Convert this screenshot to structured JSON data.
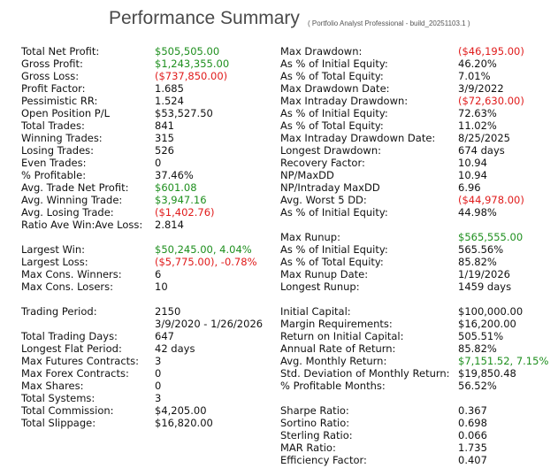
{
  "header": {
    "title": "Performance Summary",
    "subtitle": "( Portfolio Analyst Professional - build_20251103.1 )"
  },
  "colors": {
    "positive": "#1e8f1e",
    "negative": "#e01b1b",
    "text": "#111111"
  },
  "left_column": [
    {
      "label": "Total Net Profit:",
      "value": "$505,505.00",
      "tone": "green"
    },
    {
      "label": "Gross Profit:",
      "value": "$1,243,355.00",
      "tone": "green"
    },
    {
      "label": "Gross Loss:",
      "value": "($737,850.00)",
      "tone": "red"
    },
    {
      "label": "Profit Factor:",
      "value": "1.685"
    },
    {
      "label": "Pessimistic RR:",
      "value": "1.524"
    },
    {
      "label": "Open Position P/L",
      "value": "$53,527.50"
    },
    {
      "label": "Total Trades:",
      "value": "841"
    },
    {
      "label": "Winning Trades:",
      "value": "315"
    },
    {
      "label": "Losing Trades:",
      "value": "526"
    },
    {
      "label": "Even Trades:",
      "value": "0"
    },
    {
      "label": "% Profitable:",
      "value": "37.46%"
    },
    {
      "label": "Avg. Trade Net Profit:",
      "value": "$601.08",
      "tone": "green"
    },
    {
      "label": "Avg. Winning Trade:",
      "value": "$3,947.16",
      "tone": "green"
    },
    {
      "label": "Avg. Losing Trade:",
      "value": "($1,402.76)",
      "tone": "red"
    },
    {
      "label": "Ratio Ave Win:Ave Loss:",
      "value": "2.814"
    },
    {
      "label": "",
      "value": ""
    },
    {
      "label": "Largest Win:",
      "value": "$50,245.00, 4.04%",
      "tone": "green"
    },
    {
      "label": "Largest Loss:",
      "value": "($5,775.00), -0.78%",
      "tone": "red"
    },
    {
      "label": "Max Cons. Winners:",
      "value": "6"
    },
    {
      "label": "Max Cons. Losers:",
      "value": "10"
    },
    {
      "label": "",
      "value": ""
    },
    {
      "label": "Trading Period:",
      "value": "2150"
    },
    {
      "label": "",
      "value": "3/9/2020 - 1/26/2026"
    },
    {
      "label": "Total Trading Days:",
      "value": "647"
    },
    {
      "label": "Longest Flat Period:",
      "value": "42 days"
    },
    {
      "label": "Max Futures Contracts:",
      "value": "3"
    },
    {
      "label": "Max Forex Contracts:",
      "value": "0"
    },
    {
      "label": "Max Shares:",
      "value": "0"
    },
    {
      "label": "Total Systems:",
      "value": "3"
    },
    {
      "label": "Total Commission:",
      "value": "$4,205.00"
    },
    {
      "label": "Total Slippage:",
      "value": "$16,820.00"
    }
  ],
  "right_column": [
    {
      "label": "Max Drawdown:",
      "value": "($46,195.00)",
      "tone": "red"
    },
    {
      "label": "As % of Initial Equity:",
      "value": "46.20%"
    },
    {
      "label": "As % of Total Equity:",
      "value": "7.01%"
    },
    {
      "label": "Max Drawdown Date:",
      "value": "3/9/2022"
    },
    {
      "label": "Max Intraday Drawdown:",
      "value": "($72,630.00)",
      "tone": "red"
    },
    {
      "label": "As % of Initial Equity:",
      "value": "72.63%"
    },
    {
      "label": "As % of Total Equity:",
      "value": "11.02%"
    },
    {
      "label": "Max Intraday Drawdown Date:",
      "value": "8/25/2025"
    },
    {
      "label": "Longest Drawdown:",
      "value": "674 days"
    },
    {
      "label": "Recovery Factor:",
      "value": "10.94"
    },
    {
      "label": "NP/MaxDD",
      "value": "10.94"
    },
    {
      "label": "NP/Intraday MaxDD",
      "value": "6.96"
    },
    {
      "label": "Avg. Worst 5 DD:",
      "value": "($44,978.00)",
      "tone": "red"
    },
    {
      "label": "As % of Initial Equity:",
      "value": "44.98%"
    },
    {
      "label": "",
      "value": ""
    },
    {
      "label": "Max Runup:",
      "value": "$565,555.00",
      "tone": "green"
    },
    {
      "label": "As % of Initial Equity:",
      "value": "565.56%"
    },
    {
      "label": "As % of Total Equity:",
      "value": "85.82%"
    },
    {
      "label": "Max Runup Date:",
      "value": "1/19/2026"
    },
    {
      "label": "Longest Runup:",
      "value": "1459 days"
    },
    {
      "label": "",
      "value": ""
    },
    {
      "label": "Initial Capital:",
      "value": "$100,000.00"
    },
    {
      "label": "Margin Requirements:",
      "value": "$16,200.00"
    },
    {
      "label": "Return on Initial Capital:",
      "value": "505.51%"
    },
    {
      "label": "Annual Rate of Return:",
      "value": "85.82%"
    },
    {
      "label": "Avg. Monthly Return:",
      "value": "$7,151.52, 7.15%",
      "tone": "green"
    },
    {
      "label": "Std. Deviation of Monthly Return:",
      "value": "$19,850.48"
    },
    {
      "label": "% Profitable Months:",
      "value": "56.52%"
    },
    {
      "label": "",
      "value": ""
    },
    {
      "label": "Sharpe Ratio:",
      "value": "0.367"
    },
    {
      "label": "Sortino Ratio:",
      "value": "0.698"
    },
    {
      "label": "Sterling Ratio:",
      "value": "0.066"
    },
    {
      "label": "MAR Ratio:",
      "value": "1.735"
    },
    {
      "label": "Efficiency Factor:",
      "value": "0.407"
    }
  ]
}
